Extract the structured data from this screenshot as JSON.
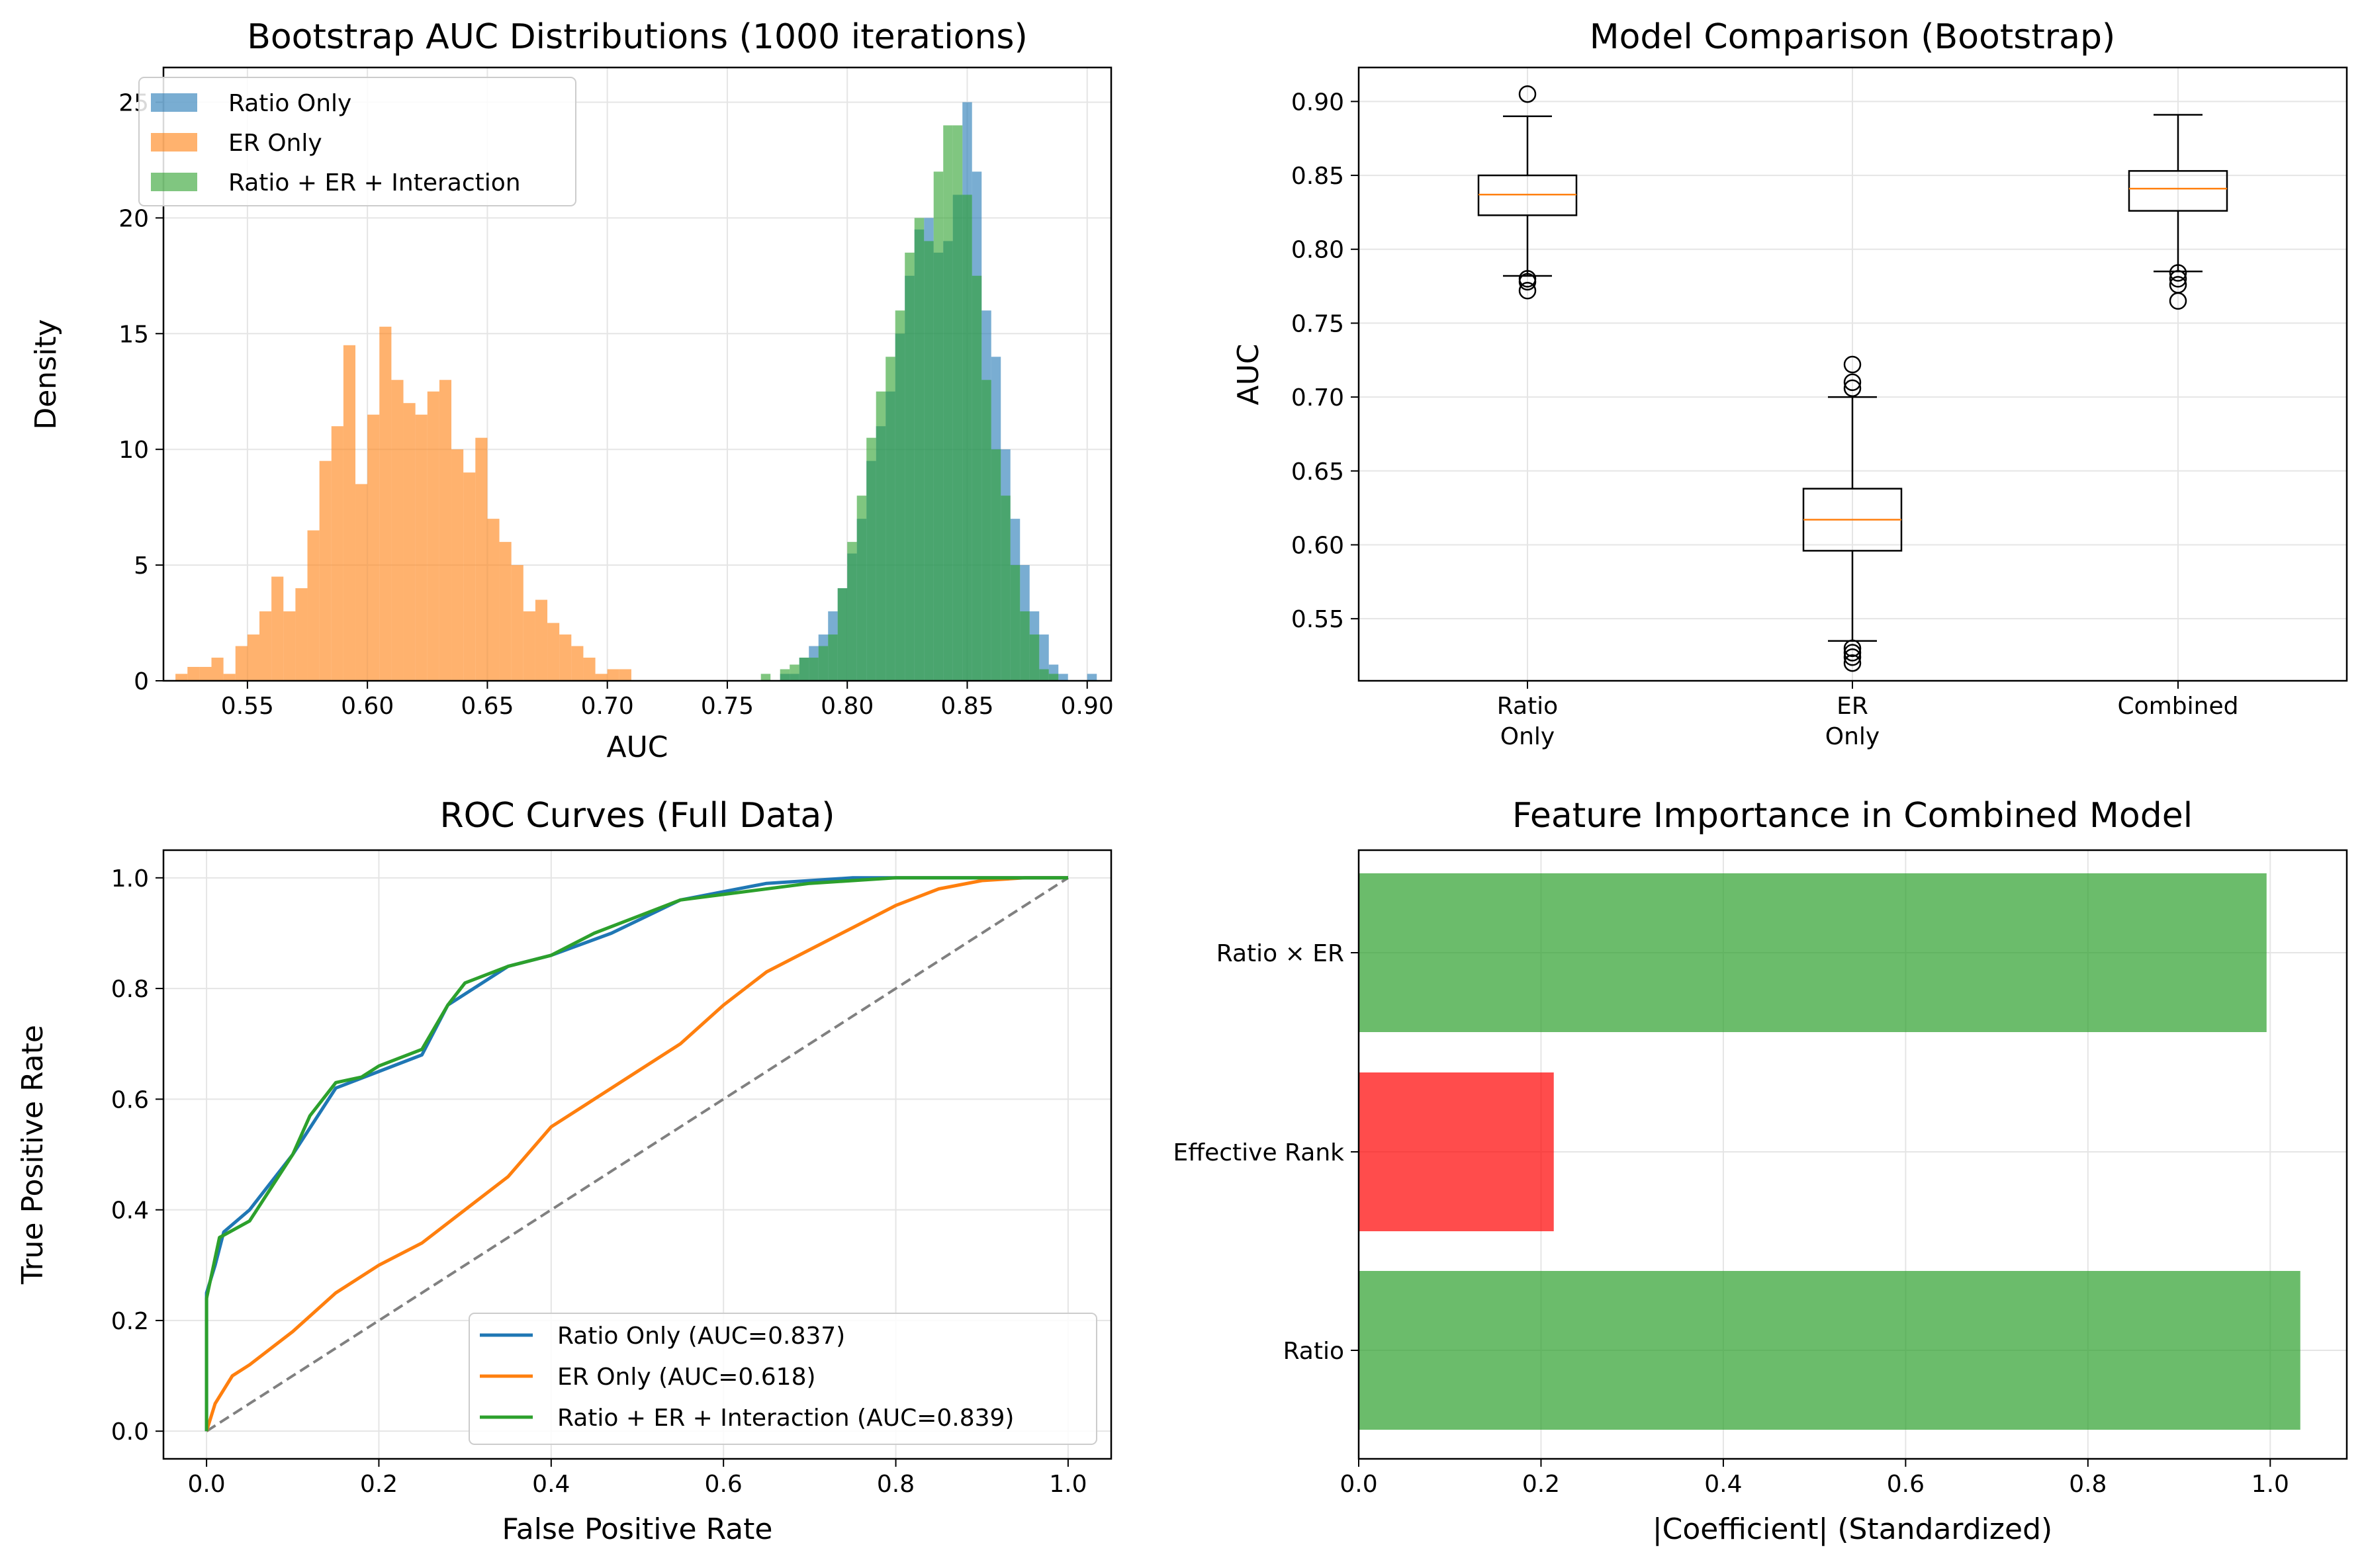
{
  "charts": [
    {
      "type": "histogram",
      "title": "Bootstrap AUC Distributions (1000 iterations)",
      "xlabel": "AUC",
      "ylabel": "Density",
      "xlim": [
        0.515,
        0.91
      ],
      "ylim": [
        0,
        26.5
      ],
      "xticks": [
        0.55,
        0.6,
        0.65,
        0.7,
        0.75,
        0.8,
        0.85,
        0.9
      ],
      "xtick_labels": [
        "0.55",
        "0.60",
        "0.65",
        "0.70",
        "0.75",
        "0.80",
        "0.85",
        "0.90"
      ],
      "yticks": [
        0,
        5,
        10,
        15,
        20,
        25
      ],
      "ytick_labels": [
        "0",
        "5",
        "10",
        "15",
        "20",
        "25"
      ],
      "grid": true,
      "legend_position": "top-left",
      "series": [
        {
          "name": "Ratio Only",
          "color": "#1f77b4",
          "alpha": 0.6,
          "bins": [
            0.772,
            0.776,
            0.78,
            0.784,
            0.788,
            0.792,
            0.796,
            0.8,
            0.804,
            0.808,
            0.812,
            0.816,
            0.82,
            0.824,
            0.828,
            0.832,
            0.836,
            0.84,
            0.844,
            0.848,
            0.852,
            0.856,
            0.86,
            0.864,
            0.868,
            0.872,
            0.876,
            0.88,
            0.884,
            0.888,
            0.892,
            0.896,
            0.9,
            0.904
          ],
          "heights": [
            0.3,
            0.3,
            1.0,
            1.5,
            2.0,
            3.0,
            4.0,
            5.5,
            7.0,
            9.5,
            11.0,
            12.5,
            15.0,
            17.5,
            19.5,
            20.0,
            18.5,
            19.0,
            21.0,
            25.0,
            22.0,
            16.0,
            14.0,
            10.0,
            7.0,
            5.0,
            3.0,
            2.0,
            0.7,
            0.3,
            0.0,
            0.0,
            0.3
          ]
        },
        {
          "name": "ER Only",
          "color": "#ff7f0e",
          "alpha": 0.6,
          "bins": [
            0.52,
            0.525,
            0.53,
            0.535,
            0.54,
            0.545,
            0.55,
            0.555,
            0.56,
            0.565,
            0.57,
            0.575,
            0.58,
            0.585,
            0.59,
            0.595,
            0.6,
            0.605,
            0.61,
            0.615,
            0.62,
            0.625,
            0.63,
            0.635,
            0.64,
            0.645,
            0.65,
            0.655,
            0.66,
            0.665,
            0.67,
            0.675,
            0.68,
            0.685,
            0.69,
            0.695,
            0.7,
            0.705,
            0.71,
            0.715,
            0.72
          ],
          "heights": [
            0.3,
            0.6,
            0.6,
            1.0,
            0.3,
            1.5,
            2.0,
            3.0,
            4.5,
            3.0,
            4.0,
            6.5,
            9.5,
            11.0,
            14.5,
            8.5,
            11.5,
            15.3,
            13.0,
            12.0,
            11.5,
            12.5,
            13.0,
            10.0,
            9.0,
            10.5,
            7.0,
            6.0,
            5.0,
            3.0,
            3.5,
            2.5,
            2.0,
            1.5,
            1.0,
            0.3,
            0.5,
            0.5,
            0.0,
            0.0,
            0.3
          ]
        },
        {
          "name": "Ratio + ER + Interaction",
          "color": "#2ca02c",
          "alpha": 0.6,
          "bins": [
            0.764,
            0.768,
            0.772,
            0.776,
            0.78,
            0.784,
            0.788,
            0.792,
            0.796,
            0.8,
            0.804,
            0.808,
            0.812,
            0.816,
            0.82,
            0.824,
            0.828,
            0.832,
            0.836,
            0.84,
            0.844,
            0.848,
            0.852,
            0.856,
            0.86,
            0.864,
            0.868,
            0.872,
            0.876,
            0.88,
            0.884,
            0.888
          ],
          "heights": [
            0.3,
            0.0,
            0.5,
            0.7,
            1.0,
            1.0,
            1.5,
            2.0,
            4.0,
            6.0,
            8.0,
            10.5,
            12.5,
            14.0,
            16.0,
            18.5,
            20.0,
            19.0,
            22.0,
            24.0,
            24.0,
            21.0,
            17.5,
            13.0,
            10.0,
            8.0,
            5.0,
            3.0,
            2.0,
            0.5,
            0.3
          ]
        }
      ]
    },
    {
      "type": "box",
      "title": "Model Comparison (Bootstrap)",
      "xlabel": "",
      "ylabel": "AUC",
      "ylim": [
        0.508,
        0.923
      ],
      "yticks": [
        0.55,
        0.6,
        0.65,
        0.7,
        0.75,
        0.8,
        0.85,
        0.9
      ],
      "ytick_labels": [
        "0.55",
        "0.60",
        "0.65",
        "0.70",
        "0.75",
        "0.80",
        "0.85",
        "0.90"
      ],
      "categories": [
        "Ratio\nOnly",
        "ER\nOnly",
        "Combined"
      ],
      "grid": true,
      "boxes": [
        {
          "q1": 0.823,
          "median": 0.837,
          "q3": 0.85,
          "whisker_low": 0.782,
          "whisker_high": 0.89,
          "fliers": [
            0.905,
            0.78,
            0.778,
            0.772
          ]
        },
        {
          "q1": 0.596,
          "median": 0.617,
          "q3": 0.638,
          "whisker_low": 0.535,
          "whisker_high": 0.7,
          "fliers": [
            0.722,
            0.71,
            0.706,
            0.53,
            0.527,
            0.524,
            0.52
          ]
        },
        {
          "q1": 0.826,
          "median": 0.841,
          "q3": 0.853,
          "whisker_low": 0.785,
          "whisker_high": 0.891,
          "fliers": [
            0.784,
            0.78,
            0.776,
            0.765
          ]
        }
      ],
      "box_color": "#000000",
      "median_color": "#ff7f0e"
    },
    {
      "type": "line",
      "title": "ROC Curves (Full Data)",
      "xlabel": "False Positive Rate",
      "ylabel": "True Positive Rate",
      "xlim": [
        -0.05,
        1.05
      ],
      "ylim": [
        -0.05,
        1.05
      ],
      "xticks": [
        0.0,
        0.2,
        0.4,
        0.6,
        0.8,
        1.0
      ],
      "xtick_labels": [
        "0.0",
        "0.2",
        "0.4",
        "0.6",
        "0.8",
        "1.0"
      ],
      "yticks": [
        0.0,
        0.2,
        0.4,
        0.6,
        0.8,
        1.0
      ],
      "ytick_labels": [
        "0.0",
        "0.2",
        "0.4",
        "0.6",
        "0.8",
        "1.0"
      ],
      "grid": true,
      "legend_position": "bottom-right",
      "series": [
        {
          "name": "Ratio Only (AUC=0.837)",
          "color": "#1f77b4",
          "x": [
            0.0,
            0.0,
            0.01,
            0.02,
            0.05,
            0.1,
            0.15,
            0.2,
            0.25,
            0.28,
            0.35,
            0.4,
            0.47,
            0.55,
            0.65,
            0.75,
            0.85,
            1.0
          ],
          "y": [
            0.0,
            0.25,
            0.3,
            0.36,
            0.4,
            0.5,
            0.62,
            0.65,
            0.68,
            0.77,
            0.84,
            0.86,
            0.9,
            0.96,
            0.99,
            1.0,
            1.0,
            1.0
          ]
        },
        {
          "name": "ER Only (AUC=0.618)",
          "color": "#ff7f0e",
          "x": [
            0.0,
            0.01,
            0.03,
            0.05,
            0.1,
            0.15,
            0.2,
            0.25,
            0.3,
            0.35,
            0.4,
            0.45,
            0.5,
            0.55,
            0.6,
            0.65,
            0.7,
            0.75,
            0.8,
            0.85,
            0.9,
            0.95,
            1.0
          ],
          "y": [
            0.0,
            0.05,
            0.1,
            0.12,
            0.18,
            0.25,
            0.3,
            0.34,
            0.4,
            0.46,
            0.55,
            0.6,
            0.65,
            0.7,
            0.77,
            0.83,
            0.87,
            0.91,
            0.95,
            0.98,
            0.995,
            1.0,
            1.0
          ]
        },
        {
          "name": "Ratio + ER + Interaction (AUC=0.839)",
          "color": "#2ca02c",
          "x": [
            0.0,
            0.0,
            0.015,
            0.05,
            0.1,
            0.12,
            0.15,
            0.18,
            0.2,
            0.25,
            0.28,
            0.3,
            0.35,
            0.4,
            0.45,
            0.5,
            0.55,
            0.6,
            0.7,
            0.8,
            0.9,
            1.0
          ],
          "y": [
            0.0,
            0.24,
            0.35,
            0.38,
            0.5,
            0.57,
            0.63,
            0.64,
            0.66,
            0.69,
            0.77,
            0.81,
            0.84,
            0.86,
            0.9,
            0.93,
            0.96,
            0.97,
            0.99,
            1.0,
            1.0,
            1.0
          ]
        },
        {
          "name": "",
          "color": "#808080",
          "dashed": true,
          "x": [
            0.0,
            1.0
          ],
          "y": [
            0.0,
            1.0
          ]
        }
      ]
    },
    {
      "type": "barh",
      "title": "Feature Importance in Combined Model",
      "xlabel": "|Coefficient| (Standardized)",
      "ylabel": "",
      "xlim": [
        0,
        1.084
      ],
      "xticks": [
        0.0,
        0.2,
        0.4,
        0.6,
        0.8,
        1.0
      ],
      "xtick_labels": [
        "0.0",
        "0.2",
        "0.4",
        "0.6",
        "0.8",
        "1.0"
      ],
      "grid": true,
      "categories": [
        "Ratio",
        "Effective Rank",
        "Ratio × ER"
      ],
      "values": [
        1.033,
        0.214,
        0.996
      ],
      "colors": [
        "#2ca02c",
        "#ff0000",
        "#2ca02c"
      ],
      "alpha": 0.7
    }
  ]
}
